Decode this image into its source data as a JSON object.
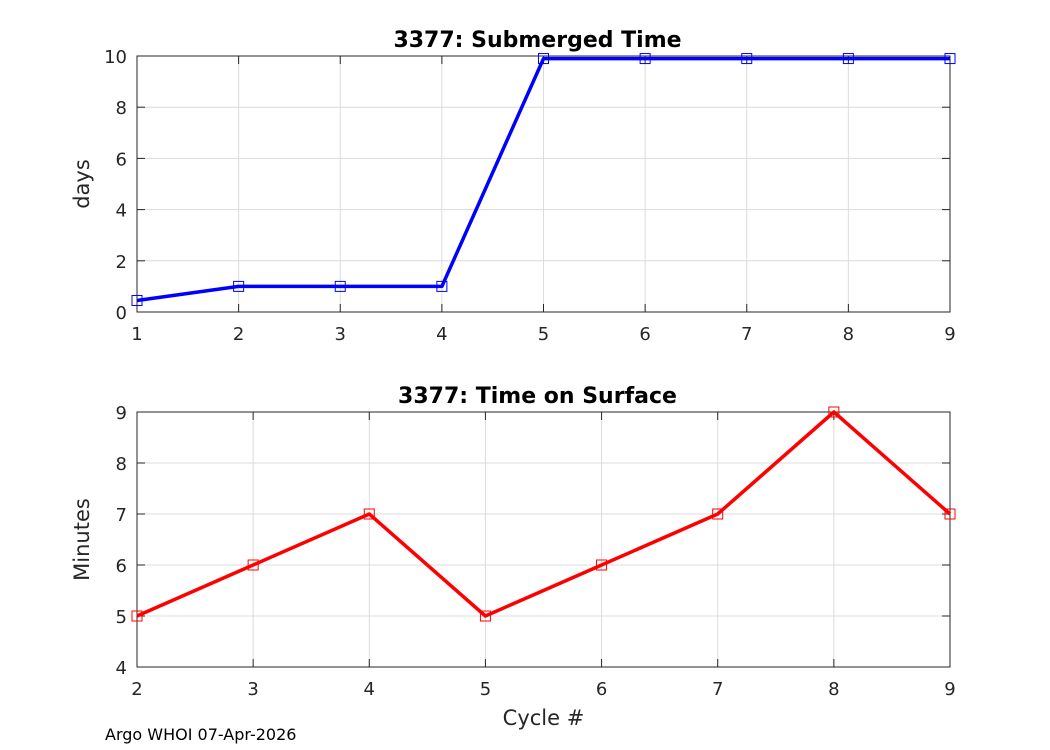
{
  "chart_data": [
    {
      "type": "line",
      "title": "3377: Submerged Time",
      "xlabel": "",
      "ylabel": "days",
      "x": [
        1,
        2,
        3,
        4,
        5,
        6,
        7,
        8,
        9
      ],
      "y": [
        0.45,
        1.0,
        1.0,
        1.0,
        9.9,
        9.9,
        9.9,
        9.9,
        9.9
      ],
      "xlim": [
        1,
        9
      ],
      "ylim": [
        0,
        10
      ],
      "xticks": [
        1,
        2,
        3,
        4,
        5,
        6,
        7,
        8,
        9
      ],
      "yticks": [
        0,
        2,
        4,
        6,
        8,
        10
      ],
      "grid": true,
      "color": "#0000ff",
      "marker": "square"
    },
    {
      "type": "line",
      "title": "3377: Time on Surface",
      "xlabel": "Cycle #",
      "ylabel": "Minutes",
      "x": [
        2,
        3,
        4,
        5,
        6,
        7,
        8,
        9
      ],
      "y": [
        5,
        6,
        7,
        5,
        6,
        7,
        9,
        7
      ],
      "xlim": [
        2,
        9
      ],
      "ylim": [
        4,
        9
      ],
      "xticks": [
        2,
        3,
        4,
        5,
        6,
        7,
        8,
        9
      ],
      "yticks": [
        4,
        5,
        6,
        7,
        8,
        9
      ],
      "grid": true,
      "color": "#ff0000",
      "marker": "square"
    }
  ],
  "footer": "Argo WHOI 07-Apr-2026"
}
